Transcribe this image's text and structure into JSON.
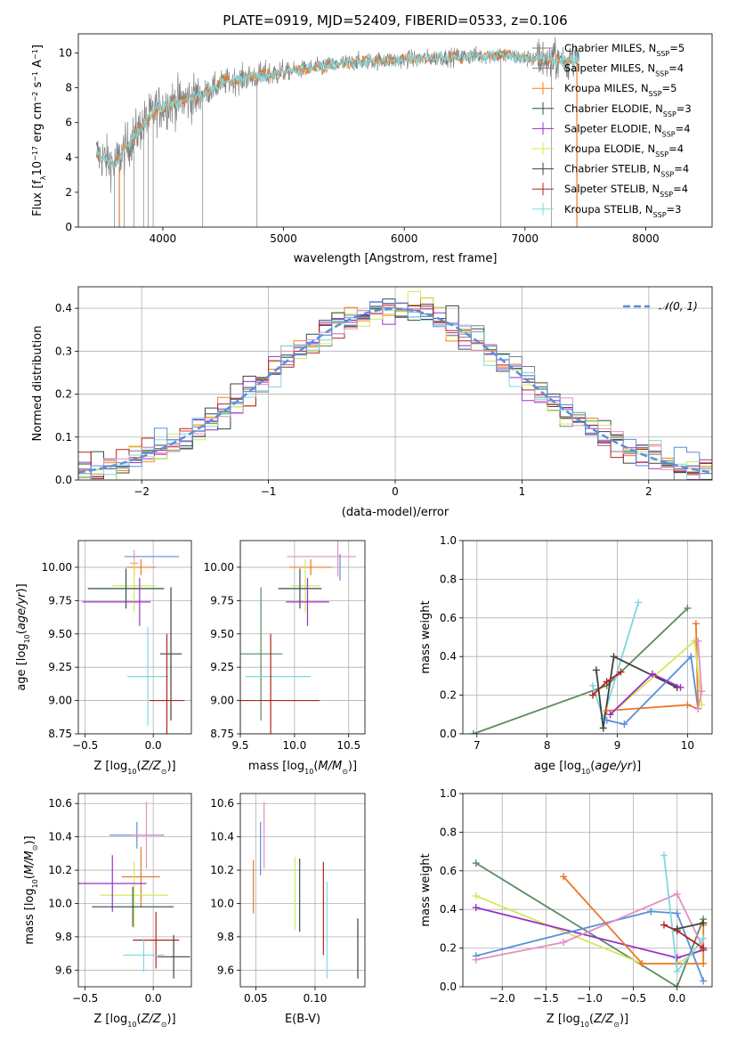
{
  "figure_title": "PLATE=0919, MJD=52409, FIBERID=0533, z=0.106",
  "colors": {
    "Chabrier MILES": "#7f7f7f",
    "Salpeter MILES": "#7f7f7f",
    "Kroupa MILES": "#ff7f0e",
    "Chabrier ELODIE": "#2f4f4f",
    "Salpeter ELODIE": "#9b30c8",
    "Kroupa ELODIE": "#d4e85a",
    "Chabrier STELIB": "#404040",
    "Salpeter STELIB": "#b22222",
    "Kroupa STELIB": "#7fd8e0",
    "Normal": "#5b8fd9",
    "spectrum": "#7f7f7f",
    "model1": "#e87a2a",
    "model2": "#7fd8e0",
    "green": "#5a8a60",
    "pink": "#e38fc0",
    "blue": "#5b8fd9"
  },
  "chart_data": [
    {
      "id": "spectrum",
      "type": "line",
      "title": "PLATE=0919, MJD=52409, FIBERID=0533, z=0.106",
      "xlabel": "wavelength [Angstrom, rest frame]",
      "ylabel": "Flux [f_λ 10^-17 erg cm^-2 s^-1 A^-1]",
      "xlim": [
        3300,
        8550
      ],
      "ylim": [
        0,
        11.1
      ],
      "xticks": [
        4000,
        5000,
        6000,
        7000,
        8000
      ],
      "yticks": [
        0,
        2,
        4,
        6,
        8,
        10
      ],
      "legend": [
        {
          "name": "Chabrier MILES",
          "nssp": "N_SSP=5"
        },
        {
          "name": "Salpeter MILES",
          "nssp": "N_SSP=4"
        },
        {
          "name": "Kroupa MILES",
          "nssp": "N_SSP=5"
        },
        {
          "name": "Chabrier ELODIE",
          "nssp": "N_SSP=3"
        },
        {
          "name": "Salpeter ELODIE",
          "nssp": "N_SSP=4"
        },
        {
          "name": "Kroupa ELODIE",
          "nssp": "N_SSP=4"
        },
        {
          "name": "Chabrier STELIB",
          "nssp": "N_SSP=4"
        },
        {
          "name": "Salpeter STELIB",
          "nssp": "N_SSP=4"
        },
        {
          "name": "Kroupa STELIB",
          "nssp": "N_SSP=3"
        }
      ],
      "continuum": [
        [
          3450,
          4.2
        ],
        [
          3600,
          3.6
        ],
        [
          3800,
          5.6
        ],
        [
          3950,
          6.8
        ],
        [
          4100,
          7.2
        ],
        [
          4300,
          7.5
        ],
        [
          4500,
          8.3
        ],
        [
          4800,
          8.7
        ],
        [
          5000,
          8.9
        ],
        [
          5300,
          9.2
        ],
        [
          5600,
          9.5
        ],
        [
          5900,
          9.6
        ],
        [
          6200,
          9.7
        ],
        [
          6500,
          9.8
        ],
        [
          6800,
          9.9
        ],
        [
          7000,
          9.7
        ],
        [
          7300,
          9.6
        ],
        [
          7450,
          9.6
        ]
      ]
    },
    {
      "id": "residuals",
      "type": "step",
      "xlabel": "(data-model)/error",
      "ylabel": "Normed distribution",
      "xlim": [
        -2.5,
        2.5
      ],
      "ylim": [
        0,
        0.45
      ],
      "xticks": [
        -2,
        -1,
        0,
        1,
        2
      ],
      "yticks": [
        0.0,
        0.1,
        0.2,
        0.3,
        0.4
      ],
      "legend_label": "𝒩(0, 1)"
    },
    {
      "id": "age-Z",
      "type": "errorbar",
      "xlabel": "Z [log10(Z/Z⊙)]",
      "ylabel": "age  [log10(age/yr)]",
      "xlim": [
        -0.55,
        0.28
      ],
      "ylim": [
        8.75,
        10.2
      ],
      "xticks": [
        -0.5,
        0.0
      ],
      "yticks": [
        8.75,
        9.0,
        9.25,
        9.5,
        9.75,
        10.0
      ],
      "points": [
        {
          "x": -0.01,
          "y": 10.08,
          "xerr": 0.2,
          "yerr": 0.0,
          "color": "blue"
        },
        {
          "x": -0.09,
          "y": 10.0,
          "xerr": 0.11,
          "yerr": 0.06,
          "color": "model1"
        },
        {
          "x": -0.14,
          "y": 10.03,
          "xerr": 0.03,
          "yerr": 0.1,
          "color": "pink"
        },
        {
          "x": -0.14,
          "y": 9.86,
          "xerr": 0.16,
          "yerr": 0.2,
          "color": "Kroupa ELODIE"
        },
        {
          "x": -0.2,
          "y": 9.84,
          "xerr": 0.28,
          "yerr": 0.15,
          "color": "Chabrier ELODIE"
        },
        {
          "x": -0.27,
          "y": 9.74,
          "xerr": 0.25,
          "yerr": 0.0,
          "color": "Salpeter ELODIE"
        },
        {
          "x": -0.1,
          "y": 9.74,
          "xerr": 0.0,
          "yerr": 0.18,
          "color": "Salpeter ELODIE"
        },
        {
          "x": 0.13,
          "y": 9.35,
          "xerr": 0.08,
          "yerr": 0.5,
          "color": "Chabrier STELIB"
        },
        {
          "x": -0.04,
          "y": 9.18,
          "xerr": 0.15,
          "yerr": 0.37,
          "color": "Kroupa STELIB"
        },
        {
          "x": 0.1,
          "y": 9.0,
          "xerr": 0.13,
          "yerr": 0.5,
          "color": "Salpeter STELIB"
        }
      ]
    },
    {
      "id": "age-mass",
      "type": "errorbar",
      "xlabel": "mass [log10(M/M⊙)]",
      "ylabel": "",
      "xlim": [
        9.5,
        10.65
      ],
      "ylim": [
        8.75,
        10.2
      ],
      "xticks": [
        9.5,
        10.0,
        10.5
      ],
      "yticks": [
        8.75,
        9.0,
        9.25,
        9.5,
        9.75,
        10.0
      ],
      "points": [
        {
          "x": 10.25,
          "y": 10.08,
          "xerr": 0.32,
          "yerr": 0.0,
          "color": "pink"
        },
        {
          "x": 10.4,
          "y": 10.08,
          "xerr": 0.0,
          "yerr": 0.15,
          "color": "pink"
        },
        {
          "x": 10.42,
          "y": 10.0,
          "xerr": 0.0,
          "yerr": 0.1,
          "color": "blue"
        },
        {
          "x": 10.15,
          "y": 10.0,
          "xerr": 0.2,
          "yerr": 0.06,
          "color": "model1"
        },
        {
          "x": 10.1,
          "y": 9.86,
          "xerr": 0.13,
          "yerr": 0.2,
          "color": "Kroupa ELODIE"
        },
        {
          "x": 10.05,
          "y": 9.84,
          "xerr": 0.2,
          "yerr": 0.15,
          "color": "Chabrier ELODIE"
        },
        {
          "x": 10.12,
          "y": 9.74,
          "xerr": 0.2,
          "yerr": 0.18,
          "color": "Salpeter ELODIE"
        },
        {
          "x": 9.69,
          "y": 9.35,
          "xerr": 0.2,
          "yerr": 0.5,
          "color": "green"
        },
        {
          "x": 9.85,
          "y": 9.18,
          "xerr": 0.3,
          "yerr": 0.0,
          "color": "Kroupa STELIB"
        },
        {
          "x": 9.78,
          "y": 9.0,
          "xerr": 0.45,
          "yerr": 0.5,
          "color": "Salpeter STELIB"
        }
      ]
    },
    {
      "id": "weight-age",
      "type": "line",
      "xlabel": "age  [log10(age/yr)]",
      "ylabel": "mass weight",
      "xlim": [
        6.8,
        10.35
      ],
      "ylim": [
        0,
        1.0
      ],
      "xticks": [
        7,
        8,
        9,
        10
      ],
      "yticks": [
        0.0,
        0.2,
        0.4,
        0.6,
        0.8,
        1.0
      ],
      "series": [
        {
          "color": "green",
          "x": [
            6.95,
            8.85,
            10.0
          ],
          "y": [
            0.0,
            0.25,
            0.65
          ]
        },
        {
          "color": "Kroupa STELIB",
          "x": [
            8.65,
            8.8,
            9.3
          ],
          "y": [
            0.25,
            0.08,
            0.68
          ]
        },
        {
          "color": "Chabrier STELIB",
          "x": [
            8.7,
            8.8,
            8.95,
            9.85
          ],
          "y": [
            0.33,
            0.03,
            0.4,
            0.24
          ]
        },
        {
          "color": "Salpeter STELIB",
          "x": [
            8.65,
            8.85,
            9.05
          ],
          "y": [
            0.2,
            0.27,
            0.32
          ]
        },
        {
          "color": "blue",
          "x": [
            8.85,
            9.1,
            10.05,
            10.15
          ],
          "y": [
            0.07,
            0.05,
            0.4,
            0.13
          ]
        },
        {
          "color": "model1",
          "x": [
            8.85,
            10.0,
            10.15,
            10.12
          ],
          "y": [
            0.12,
            0.15,
            0.13,
            0.57
          ]
        },
        {
          "color": "Kroupa ELODIE",
          "x": [
            8.9,
            10.1,
            10.2
          ],
          "y": [
            0.1,
            0.48,
            0.15
          ]
        },
        {
          "color": "Salpeter ELODIE",
          "x": [
            8.9,
            9.5,
            9.9
          ],
          "y": [
            0.1,
            0.31,
            0.24
          ]
        },
        {
          "color": "pink",
          "x": [
            10.15,
            10.2,
            10.15
          ],
          "y": [
            0.48,
            0.22,
            0.13
          ]
        }
      ]
    },
    {
      "id": "mass-Z",
      "type": "errorbar",
      "xlabel": "Z [log10(Z/Z⊙)]",
      "ylabel": "mass [log10(M/M⊙)]",
      "xlim": [
        -0.55,
        0.28
      ],
      "ylim": [
        9.5,
        10.66
      ],
      "xticks": [
        -0.5,
        0.0
      ],
      "yticks": [
        9.6,
        9.8,
        10.0,
        10.2,
        10.4,
        10.6
      ],
      "points": [
        {
          "x": -0.12,
          "y": 10.41,
          "xerr": 0.2,
          "yerr": 0.08,
          "color": "blue"
        },
        {
          "x": -0.05,
          "y": 10.41,
          "xerr": 0.11,
          "yerr": 0.2,
          "color": "pink"
        },
        {
          "x": -0.09,
          "y": 10.16,
          "xerr": 0.14,
          "yerr": 0.18,
          "color": "model1"
        },
        {
          "x": -0.14,
          "y": 10.05,
          "xerr": 0.25,
          "yerr": 0.2,
          "color": "Kroupa ELODIE"
        },
        {
          "x": -0.3,
          "y": 10.12,
          "xerr": 0.25,
          "yerr": 0.17,
          "color": "Salpeter ELODIE"
        },
        {
          "x": -0.15,
          "y": 9.98,
          "xerr": 0.3,
          "yerr": 0.12,
          "color": "Chabrier ELODIE"
        },
        {
          "x": 0.02,
          "y": 9.78,
          "xerr": 0.17,
          "yerr": 0.17,
          "color": "Salpeter STELIB"
        },
        {
          "x": -0.07,
          "y": 9.69,
          "xerr": 0.15,
          "yerr": 0.1,
          "color": "Kroupa STELIB"
        },
        {
          "x": 0.15,
          "y": 9.68,
          "xerr": 0.12,
          "yerr": 0.13,
          "color": "Chabrier STELIB"
        }
      ]
    },
    {
      "id": "mass-EBV",
      "type": "errorbar",
      "xlabel": "E(B-V)",
      "ylabel": "",
      "xlim": [
        0.037,
        0.142
      ],
      "ylim": [
        9.5,
        10.66
      ],
      "xticks": [
        0.05,
        0.1
      ],
      "yticks": [
        9.6,
        9.8,
        10.0,
        10.2,
        10.4,
        10.6
      ],
      "points": [
        {
          "x": 0.048,
          "y": 10.1,
          "yerr": 0.16,
          "color": "model1"
        },
        {
          "x": 0.054,
          "y": 10.33,
          "yerr": 0.16,
          "color": "blue"
        },
        {
          "x": 0.057,
          "y": 10.41,
          "yerr": 0.2,
          "color": "pink"
        },
        {
          "x": 0.083,
          "y": 10.06,
          "yerr": 0.22,
          "color": "Kroupa ELODIE"
        },
        {
          "x": 0.087,
          "y": 10.05,
          "yerr": 0.22,
          "color": "Chabrier ELODIE"
        },
        {
          "x": 0.107,
          "y": 9.97,
          "yerr": 0.28,
          "color": "Salpeter STELIB"
        },
        {
          "x": 0.11,
          "y": 9.84,
          "yerr": 0.29,
          "color": "Kroupa STELIB"
        },
        {
          "x": 0.136,
          "y": 9.73,
          "yerr": 0.18,
          "color": "Chabrier STELIB"
        }
      ]
    },
    {
      "id": "weight-Z",
      "type": "line",
      "xlabel": "Z [log10(Z/Z⊙)]",
      "ylabel": "mass weight",
      "xlim": [
        -2.45,
        0.4
      ],
      "ylim": [
        0,
        1.0
      ],
      "xticks": [
        -2.0,
        -1.5,
        -1.0,
        -0.5,
        0.0
      ],
      "yticks": [
        0.0,
        0.2,
        0.4,
        0.6,
        0.8,
        1.0
      ],
      "series": [
        {
          "color": "green",
          "x": [
            -2.3,
            0.0,
            0.3
          ],
          "y": [
            0.64,
            0.0,
            0.35
          ]
        },
        {
          "color": "Kroupa ELODIE",
          "x": [
            -2.3,
            -0.4,
            0.0,
            0.3
          ],
          "y": [
            0.47,
            0.12,
            0.12,
            0.2
          ]
        },
        {
          "color": "Salpeter ELODIE",
          "x": [
            -2.3,
            0.0,
            0.3
          ],
          "y": [
            0.41,
            0.15,
            0.19
          ]
        },
        {
          "color": "blue",
          "x": [
            -2.3,
            -0.3,
            0.0,
            0.3
          ],
          "y": [
            0.16,
            0.39,
            0.38,
            0.03
          ]
        },
        {
          "color": "pink",
          "x": [
            -2.3,
            -1.3,
            0.0,
            0.3
          ],
          "y": [
            0.14,
            0.23,
            0.48,
            0.2
          ]
        },
        {
          "color": "model1",
          "x": [
            -1.3,
            -0.4,
            0.3,
            0.3
          ],
          "y": [
            0.57,
            0.12,
            0.12,
            0.32
          ]
        },
        {
          "color": "Kroupa STELIB",
          "x": [
            -0.15,
            0.0,
            0.3
          ],
          "y": [
            0.68,
            0.08,
            0.25
          ]
        },
        {
          "color": "Salpeter STELIB",
          "x": [
            -0.15,
            0.0,
            0.3
          ],
          "y": [
            0.32,
            0.29,
            0.2
          ]
        },
        {
          "color": "Chabrier STELIB",
          "x": [
            0.0,
            0.3
          ],
          "y": [
            0.3,
            0.33
          ]
        }
      ]
    }
  ]
}
